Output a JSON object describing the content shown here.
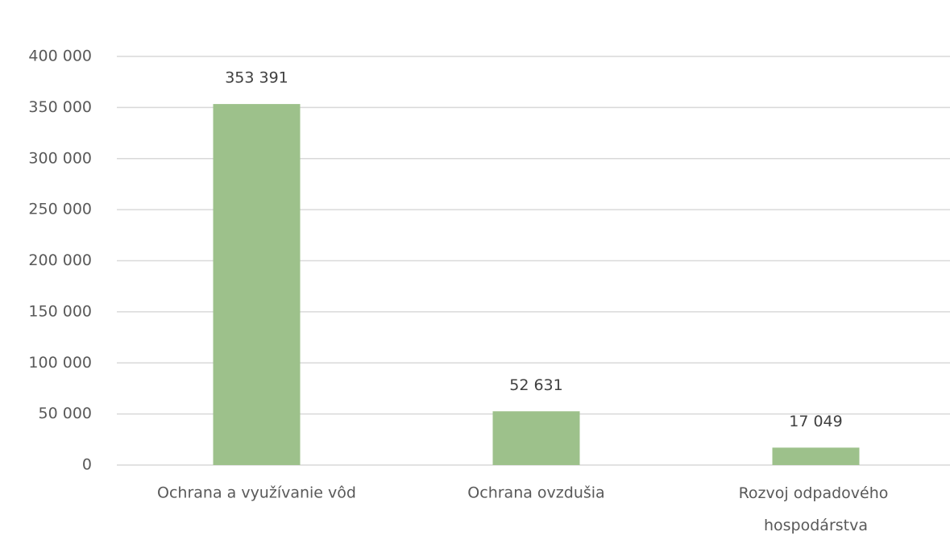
{
  "chart_data": {
    "type": "bar",
    "categories": [
      "Ochrana a využívanie vôd",
      "Ochrana ovzdušia",
      "Rozvoj odpadového hospodárstva"
    ],
    "values": [
      353391,
      52631,
      17049
    ],
    "value_labels": [
      "353 391",
      "52 631",
      "17 049"
    ],
    "color": "#9dc18b",
    "ylim": [
      0,
      400000
    ],
    "yticks": [
      0,
      {
        "value": 50000,
        "label": "50 000"
      },
      {
        "value": 100000,
        "label": "100 000"
      },
      {
        "value": 150000,
        "label": "150 000"
      },
      {
        "value": 200000,
        "label": "200 000"
      },
      {
        "value": 250000,
        "label": "250 000"
      },
      {
        "value": 300000,
        "label": "300 000"
      },
      {
        "value": 350000,
        "label": "350 000"
      },
      {
        "value": 400000,
        "label": "400 000"
      }
    ],
    "grid": true
  }
}
